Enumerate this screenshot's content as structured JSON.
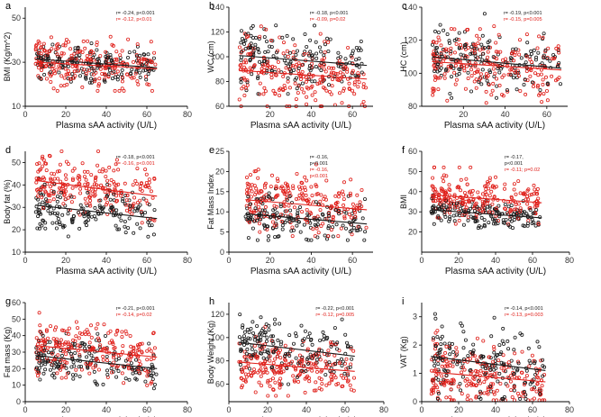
{
  "figure": {
    "colors": {
      "series_black": "#1a1a1a",
      "series_red": "#e0201b",
      "axis": "#000000"
    }
  },
  "chart_data": [
    {
      "panel": "a",
      "type": "scatter",
      "xlabel": "Plasma sAA activity (U/L)",
      "ylabel": "BMI (Kg/m^2)",
      "xlim": [
        0,
        80
      ],
      "ylim": [
        10,
        55
      ],
      "xticks": [
        0,
        20,
        40,
        60,
        80
      ],
      "yticks": [
        10,
        30,
        50
      ],
      "annotations": [
        {
          "text": "r= -0.24, p<0.001",
          "color": "black"
        },
        {
          "text": "r= -0.12, p<0.01",
          "color": "red"
        }
      ],
      "series": [
        {
          "color": "black",
          "n": 170,
          "x_range": [
            5,
            65
          ],
          "y_center": 31,
          "y_sd": 4.5,
          "y_clip": [
            18,
            47
          ],
          "trend": [
            [
              5,
              31.5
            ],
            [
              65,
              27.5
            ]
          ]
        },
        {
          "color": "red",
          "n": 230,
          "x_range": [
            5,
            65
          ],
          "y_center": 29.5,
          "y_sd": 5.5,
          "y_clip": [
            17,
            47
          ],
          "trend": [
            [
              5,
              30
            ],
            [
              65,
              27
            ]
          ]
        }
      ]
    },
    {
      "panel": "b",
      "type": "scatter",
      "xlabel": "Plasma sAA activity (U/L)",
      "ylabel": "WC (cm)",
      "xlim": [
        0,
        70
      ],
      "ylim": [
        60,
        140
      ],
      "xticks": [
        20,
        40,
        60
      ],
      "yticks": [
        60,
        80,
        100,
        120,
        140
      ],
      "annotations": [
        {
          "text": "r= -0.18, p<0.001",
          "color": "black"
        },
        {
          "text": "r= -0.09, p=0.02",
          "color": "red"
        }
      ],
      "series": [
        {
          "color": "black",
          "n": 170,
          "x_range": [
            5,
            67
          ],
          "y_center": 102,
          "y_sd": 12,
          "y_clip": [
            70,
            130
          ],
          "trend": [
            [
              5,
              101
            ],
            [
              67,
              93
            ]
          ]
        },
        {
          "color": "red",
          "n": 230,
          "x_range": [
            5,
            67
          ],
          "y_center": 88,
          "y_sd": 13,
          "y_clip": [
            60,
            130
          ],
          "trend": [
            [
              5,
              89
            ],
            [
              67,
              82
            ]
          ]
        }
      ]
    },
    {
      "panel": "c",
      "type": "scatter",
      "xlabel": "Plasma sAA activity (U/L)",
      "ylabel": "HC (cm)",
      "xlim": [
        0,
        70
      ],
      "ylim": [
        80,
        140
      ],
      "xticks": [
        20,
        40,
        60
      ],
      "yticks": [
        80,
        100,
        120,
        140
      ],
      "annotations": [
        {
          "text": "r= -0.19, p<0.001",
          "color": "black"
        },
        {
          "text": "r= -0.15, p=0.005",
          "color": "red"
        }
      ],
      "series": [
        {
          "color": "black",
          "n": 170,
          "x_range": [
            5,
            67
          ],
          "y_center": 108,
          "y_sd": 9,
          "y_clip": [
            85,
            136
          ],
          "trend": [
            [
              5,
              110
            ],
            [
              67,
              103
            ]
          ]
        },
        {
          "color": "red",
          "n": 230,
          "x_range": [
            5,
            67
          ],
          "y_center": 106,
          "y_sd": 10,
          "y_clip": [
            82,
            136
          ],
          "trend": [
            [
              5,
              107
            ],
            [
              67,
              102
            ]
          ]
        }
      ]
    },
    {
      "panel": "d",
      "type": "scatter",
      "xlabel": "Plasma sAA activity (U/L)",
      "ylabel": "Body fat (%)",
      "xlim": [
        0,
        80
      ],
      "ylim": [
        10,
        55
      ],
      "xticks": [
        0,
        20,
        40,
        60,
        80
      ],
      "yticks": [
        10,
        20,
        30,
        40,
        50
      ],
      "annotations": [
        {
          "text": "r= -0.18, p<0.001",
          "color": "black"
        },
        {
          "text": "r= -0.16, p<0.001",
          "color": "red"
        }
      ],
      "series": [
        {
          "color": "black",
          "n": 170,
          "x_range": [
            5,
            65
          ],
          "y_center": 28,
          "y_sd": 5.5,
          "y_clip": [
            13,
            43
          ],
          "trend": [
            [
              5,
              31
            ],
            [
              65,
              25
            ]
          ]
        },
        {
          "color": "red",
          "n": 230,
          "x_range": [
            5,
            65
          ],
          "y_center": 39,
          "y_sd": 6.5,
          "y_clip": [
            17,
            55
          ],
          "trend": [
            [
              5,
              42
            ],
            [
              65,
              35
            ]
          ]
        }
      ]
    },
    {
      "panel": "e",
      "type": "scatter",
      "xlabel": "Plasma sAA activity (U/L)",
      "ylabel": "Fat Mass Index",
      "xlim": [
        0,
        70
      ],
      "ylim": [
        0,
        25
      ],
      "xticks": [
        0,
        20,
        40,
        60
      ],
      "yticks": [
        0,
        5,
        10,
        15,
        20,
        25
      ],
      "annotations": [
        {
          "text": "r= -0.16,",
          "color": "black"
        },
        {
          "text": "p<0.001",
          "color": "black"
        },
        {
          "text": "r= -0.16,",
          "color": "red"
        },
        {
          "text": "p<0.001",
          "color": "red"
        }
      ],
      "series": [
        {
          "color": "black",
          "n": 170,
          "x_range": [
            8,
            67
          ],
          "y_center": 8.5,
          "y_sd": 2.8,
          "y_clip": [
            3,
            18
          ],
          "trend": [
            [
              8,
              9.5
            ],
            [
              67,
              7
            ]
          ]
        },
        {
          "color": "red",
          "n": 230,
          "x_range": [
            8,
            67
          ],
          "y_center": 12,
          "y_sd": 3.5,
          "y_clip": [
            4,
            23
          ],
          "trend": [
            [
              8,
              13
            ],
            [
              67,
              10.5
            ]
          ]
        }
      ]
    },
    {
      "panel": "f",
      "type": "scatter",
      "xlabel": "Plasma sAA activity (U/L)",
      "ylabel": "BMI",
      "xlim": [
        0,
        80
      ],
      "ylim": [
        10,
        60
      ],
      "xticks": [
        0,
        20,
        40,
        60,
        80
      ],
      "yticks": [
        20,
        30,
        40,
        50,
        60
      ],
      "annotations": [
        {
          "text": "r= -0.17,",
          "color": "black"
        },
        {
          "text": "p<0.001",
          "color": "black"
        },
        {
          "text": "r= -0.11; p=0.02",
          "color": "red"
        }
      ],
      "series": [
        {
          "color": "black",
          "n": 170,
          "x_range": [
            5,
            65
          ],
          "y_center": 29,
          "y_sd": 3.2,
          "y_clip": [
            22,
            40
          ],
          "trend": [
            [
              5,
              31
            ],
            [
              65,
              27
            ]
          ]
        },
        {
          "color": "red",
          "n": 230,
          "x_range": [
            5,
            65
          ],
          "y_center": 37,
          "y_sd": 5.5,
          "y_clip": [
            24,
            52
          ],
          "trend": [
            [
              5,
              38.5
            ],
            [
              65,
              34.5
            ]
          ]
        }
      ]
    },
    {
      "panel": "g",
      "type": "scatter",
      "xlabel": "Plasma sAA activity (U/L)",
      "ylabel": "Fat mass (Kg)",
      "xlim": [
        0,
        80
      ],
      "ylim": [
        0,
        60
      ],
      "xticks": [
        0,
        20,
        40,
        60,
        80
      ],
      "yticks": [
        0,
        10,
        20,
        30,
        40,
        50,
        60
      ],
      "annotations": [
        {
          "text": "r= -0.21, p<0.001",
          "color": "black"
        },
        {
          "text": "r= -0.14, p=0.02",
          "color": "red"
        }
      ],
      "series": [
        {
          "color": "black",
          "n": 170,
          "x_range": [
            5,
            65
          ],
          "y_center": 24,
          "y_sd": 7,
          "y_clip": [
            8,
            48
          ],
          "trend": [
            [
              5,
              28
            ],
            [
              65,
              20
            ]
          ]
        },
        {
          "color": "red",
          "n": 230,
          "x_range": [
            5,
            65
          ],
          "y_center": 31,
          "y_sd": 9,
          "y_clip": [
            8,
            58
          ],
          "trend": [
            [
              5,
              34
            ],
            [
              65,
              27
            ]
          ]
        }
      ]
    },
    {
      "panel": "h",
      "type": "scatter",
      "xlabel": "Plasma sAA activity (U/L)",
      "ylabel": "Body Weight (Kg)",
      "xlim": [
        0,
        80
      ],
      "ylim": [
        45,
        130
      ],
      "xticks": [
        0,
        20,
        40,
        60,
        80
      ],
      "yticks": [
        60,
        80,
        100,
        120
      ],
      "annotations": [
        {
          "text": "r= -0.22, p<0.001",
          "color": "black"
        },
        {
          "text": "r= -0.12, p=0.005",
          "color": "red"
        }
      ],
      "series": [
        {
          "color": "black",
          "n": 170,
          "x_range": [
            5,
            65
          ],
          "y_center": 92,
          "y_sd": 12,
          "y_clip": [
            60,
            127
          ],
          "trend": [
            [
              5,
              96
            ],
            [
              65,
              84
            ]
          ]
        },
        {
          "color": "red",
          "n": 230,
          "x_range": [
            5,
            65
          ],
          "y_center": 77,
          "y_sd": 12,
          "y_clip": [
            50,
            127
          ],
          "trend": [
            [
              5,
              79
            ],
            [
              65,
              71
            ]
          ]
        }
      ]
    },
    {
      "panel": "i",
      "type": "scatter",
      "xlabel": "Plasma sAA activity (U/L)",
      "ylabel": "VAT (Kg)",
      "xlim": [
        0,
        80
      ],
      "ylim": [
        0,
        3.5
      ],
      "xticks": [
        0,
        20,
        40,
        60,
        80
      ],
      "yticks": [
        0,
        1,
        2,
        3
      ],
      "annotations": [
        {
          "text": "r= -0.14, p<0.001",
          "color": "black"
        },
        {
          "text": "r= -0.13, p=0.003",
          "color": "red"
        }
      ],
      "series": [
        {
          "color": "black",
          "n": 170,
          "x_range": [
            5,
            67
          ],
          "y_center": 1.4,
          "y_sd": 0.65,
          "y_clip": [
            0.1,
            3.1
          ],
          "trend": [
            [
              5,
              1.6
            ],
            [
              67,
              1.1
            ]
          ]
        },
        {
          "color": "red",
          "n": 230,
          "x_range": [
            5,
            67
          ],
          "y_center": 0.95,
          "y_sd": 0.55,
          "y_clip": [
            0.05,
            3.1
          ],
          "trend": [
            [
              5,
              1.05
            ],
            [
              67,
              0.7
            ]
          ]
        }
      ]
    }
  ]
}
